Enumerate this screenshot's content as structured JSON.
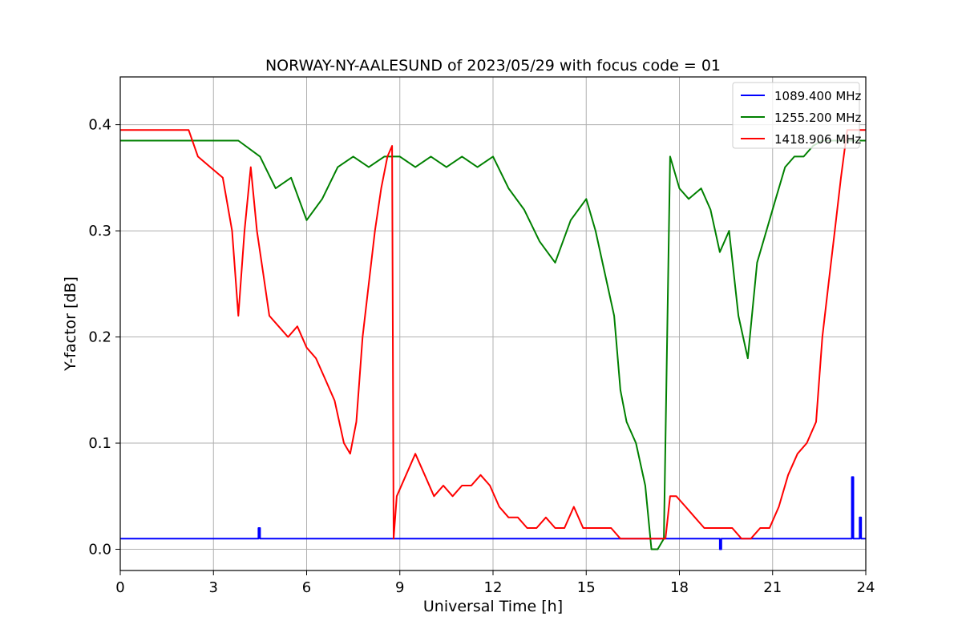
{
  "chart_data": {
    "type": "line",
    "title": "NORWAY-NY-AALESUND of 2023/05/29 with focus code = 01",
    "xlabel": "Universal Time [h]",
    "ylabel": "Y-factor [dB]",
    "xlim": [
      0,
      24
    ],
    "ylim": [
      -0.02,
      0.445
    ],
    "xticks": [
      "0",
      "3",
      "6",
      "9",
      "12",
      "15",
      "18",
      "21",
      "24"
    ],
    "yticks": [
      "0.0",
      "0.1",
      "0.2",
      "0.3",
      "0.4"
    ],
    "grid": true,
    "legend_position": "top-right",
    "series": [
      {
        "name": "1089.400 MHz",
        "color": "#0000ff",
        "x": [
          0,
          4.45,
          4.45,
          4.5,
          4.5,
          19.3,
          19.3,
          19.35,
          19.35,
          23.55,
          23.55,
          23.6,
          23.6,
          23.8,
          23.8,
          23.85,
          23.85,
          24
        ],
        "y": [
          0.01,
          0.01,
          0.02,
          0.02,
          0.01,
          0.01,
          0.0,
          0.0,
          0.01,
          0.01,
          0.068,
          0.068,
          0.01,
          0.01,
          0.03,
          0.03,
          0.01,
          0.01
        ]
      },
      {
        "name": "1255.200 MHz",
        "color": "#008000",
        "x": [
          0,
          2.2,
          3.0,
          3.8,
          4.5,
          5.0,
          5.5,
          6.0,
          6.5,
          7.0,
          7.5,
          8.0,
          8.5,
          9.0,
          9.5,
          10.0,
          10.5,
          11.0,
          11.5,
          12.0,
          12.5,
          13.0,
          13.5,
          14.0,
          14.5,
          15.0,
          15.3,
          15.6,
          15.9,
          16.1,
          16.3,
          16.6,
          16.9,
          17.1,
          17.3,
          17.5,
          17.7,
          18.0,
          18.3,
          18.7,
          19.0,
          19.3,
          19.6,
          19.9,
          20.2,
          20.5,
          20.8,
          21.1,
          21.4,
          21.7,
          22.0,
          22.3,
          22.6,
          22.9,
          23.2,
          23.5,
          24
        ],
        "y": [
          0.385,
          0.385,
          0.385,
          0.385,
          0.37,
          0.34,
          0.35,
          0.31,
          0.33,
          0.36,
          0.37,
          0.36,
          0.37,
          0.37,
          0.36,
          0.37,
          0.36,
          0.37,
          0.36,
          0.37,
          0.34,
          0.32,
          0.29,
          0.27,
          0.31,
          0.33,
          0.3,
          0.26,
          0.22,
          0.15,
          0.12,
          0.1,
          0.06,
          0.0,
          0.0,
          0.01,
          0.37,
          0.34,
          0.33,
          0.34,
          0.32,
          0.28,
          0.3,
          0.22,
          0.18,
          0.27,
          0.3,
          0.33,
          0.36,
          0.37,
          0.37,
          0.38,
          0.385,
          0.385,
          0.385,
          0.385,
          0.385
        ]
      },
      {
        "name": "1418.906 MHz",
        "color": "#ff0000",
        "x": [
          0,
          2.2,
          2.5,
          2.9,
          3.3,
          3.6,
          3.8,
          4.0,
          4.2,
          4.4,
          4.6,
          4.8,
          5.1,
          5.4,
          5.7,
          6.0,
          6.3,
          6.6,
          6.9,
          7.2,
          7.4,
          7.6,
          7.8,
          8.0,
          8.2,
          8.4,
          8.6,
          8.75,
          8.8,
          8.9,
          9.2,
          9.5,
          9.8,
          10.1,
          10.4,
          10.7,
          11.0,
          11.3,
          11.6,
          11.9,
          12.2,
          12.5,
          12.8,
          13.1,
          13.4,
          13.7,
          14.0,
          14.3,
          14.6,
          14.9,
          15.2,
          15.5,
          15.8,
          16.1,
          16.4,
          16.7,
          17.0,
          17.3,
          17.55,
          17.7,
          17.9,
          18.2,
          18.5,
          18.8,
          19.1,
          19.4,
          19.7,
          20.0,
          20.3,
          20.6,
          20.9,
          21.2,
          21.5,
          21.8,
          22.1,
          22.4,
          22.6,
          22.8,
          23.0,
          23.2,
          23.4,
          24
        ],
        "y": [
          0.395,
          0.395,
          0.37,
          0.36,
          0.35,
          0.3,
          0.22,
          0.3,
          0.36,
          0.3,
          0.26,
          0.22,
          0.21,
          0.2,
          0.21,
          0.19,
          0.18,
          0.16,
          0.14,
          0.1,
          0.09,
          0.12,
          0.2,
          0.25,
          0.3,
          0.34,
          0.37,
          0.38,
          0.01,
          0.05,
          0.07,
          0.09,
          0.07,
          0.05,
          0.06,
          0.05,
          0.06,
          0.06,
          0.07,
          0.06,
          0.04,
          0.03,
          0.03,
          0.02,
          0.02,
          0.03,
          0.02,
          0.02,
          0.04,
          0.02,
          0.02,
          0.02,
          0.02,
          0.01,
          0.01,
          0.01,
          0.01,
          0.01,
          0.01,
          0.05,
          0.05,
          0.04,
          0.03,
          0.02,
          0.02,
          0.02,
          0.02,
          0.01,
          0.01,
          0.02,
          0.02,
          0.04,
          0.07,
          0.09,
          0.1,
          0.12,
          0.2,
          0.25,
          0.3,
          0.35,
          0.395,
          0.395
        ]
      }
    ]
  }
}
